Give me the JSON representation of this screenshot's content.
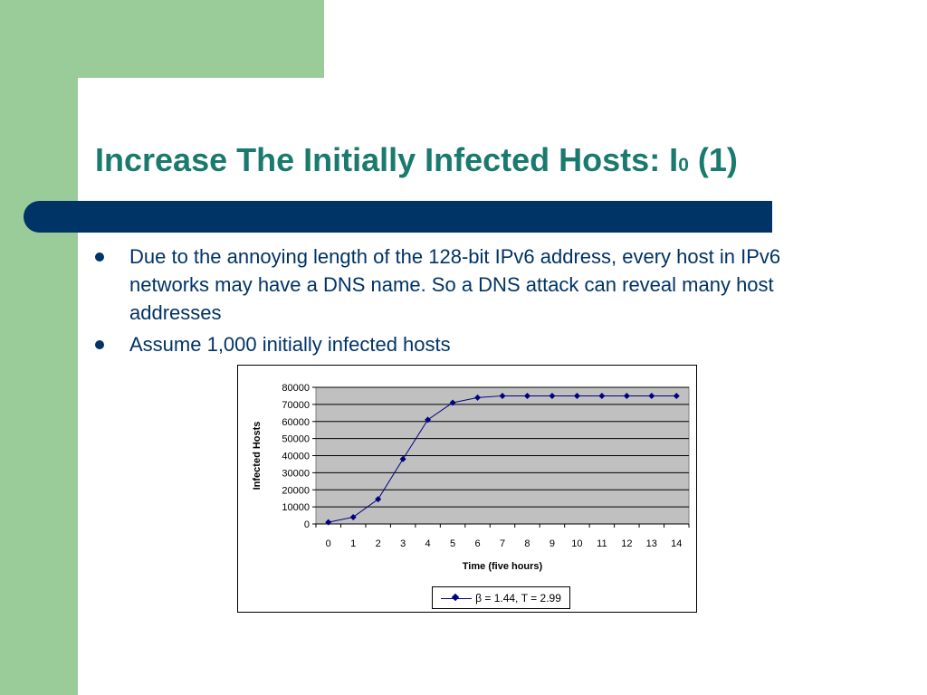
{
  "slide": {
    "title_main": "Increase The Initially Infected Hosts: I",
    "title_subscript": "0",
    "title_suffix": " (1)",
    "bullets": [
      "Due to the annoying length of the 128-bit IPv6 address, every host in IPv6 networks may have a DNS name. So a DNS attack can reveal many host addresses",
      "Assume 1,000 initially infected hosts"
    ]
  },
  "colors": {
    "title": "#1a7a6e",
    "accent_green": "#99cc99",
    "bar_navy": "#003366",
    "plot_background": "#c0c0c0",
    "series_line": "#000080"
  },
  "chart_data": {
    "type": "line",
    "x": [
      0,
      1,
      2,
      3,
      4,
      5,
      6,
      7,
      8,
      9,
      10,
      11,
      12,
      13,
      14
    ],
    "series": [
      {
        "name": "β = 1.44, T = 2.99",
        "values": [
          1000,
          4000,
          14500,
          38000,
          61000,
          71000,
          74000,
          75000,
          75000,
          75000,
          75000,
          75000,
          75000,
          75000,
          75000
        ]
      }
    ],
    "xlabel": "Time (five hours)",
    "ylabel": "Infected Hosts",
    "xlim": [
      0,
      14
    ],
    "ylim": [
      0,
      80000
    ],
    "yticks": [
      0,
      10000,
      20000,
      30000,
      40000,
      50000,
      60000,
      70000,
      80000
    ],
    "grid": true,
    "legend": "bottom"
  }
}
